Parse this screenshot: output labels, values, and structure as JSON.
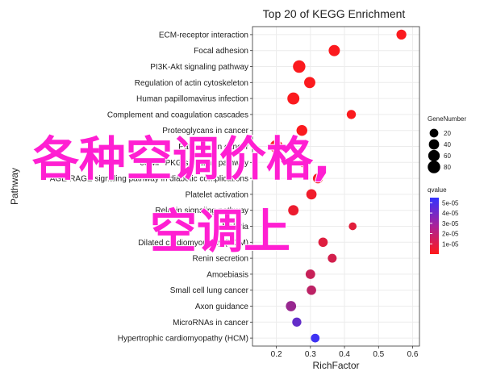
{
  "chart_data": {
    "type": "scatter",
    "title": "Top 20 of KEGG Enrichment",
    "xlabel": "RichFactor",
    "ylabel": "Pathway",
    "xlim": [
      0.13,
      0.62
    ],
    "xticks": [
      "0.2",
      "0.3",
      "0.4",
      "0.5",
      "0.6"
    ],
    "grid": true,
    "legend_position": "right",
    "size_legend": {
      "title": "GeneNumber",
      "values": [
        20,
        40,
        60,
        80
      ]
    },
    "color_legend": {
      "title": "qvalue",
      "ticks": [
        "5e-05",
        "4e-05",
        "3e-05",
        "2e-05",
        "1e-05"
      ],
      "min_color": "#ff1a1a",
      "max_color": "#3333ff",
      "domain": [
        0,
        5.5e-05
      ]
    },
    "categories": [
      "ECM-receptor interaction",
      "Focal adhesion",
      "PI3K-Akt signaling pathway",
      "Regulation of actin cytoskeleton",
      "Human papillomavirus infection",
      "Complement and coagulation cascades",
      "Proteoglycans in cancer",
      "Pathways in cancer",
      "cGMP-PKG signaling pathway",
      "AGE-RAGE signaling pathway in diabetic complications",
      "Platelet activation",
      "Relaxin signaling pathway",
      "Malaria",
      "Dilated cardiomyopathy (DCM)",
      "Renin secretion",
      "Amoebiasis",
      "Small cell lung cancer",
      "Axon guidance",
      "MicroRNAs in cancer",
      "Hypertrophic cardiomyopathy (HCM)"
    ],
    "points": [
      {
        "pathway": "ECM-receptor interaction",
        "x": 0.567,
        "gene": 35,
        "q": 1e-06
      },
      {
        "pathway": "Focal adhesion",
        "x": 0.37,
        "gene": 55,
        "q": 1e-06
      },
      {
        "pathway": "PI3K-Akt signaling pathway",
        "x": 0.267,
        "gene": 78,
        "q": 1e-06
      },
      {
        "pathway": "Regulation of actin cytoskeleton",
        "x": 0.298,
        "gene": 55,
        "q": 1e-06
      },
      {
        "pathway": "Human papillomavirus infection",
        "x": 0.25,
        "gene": 70,
        "q": 1e-06
      },
      {
        "pathway": "Complement and coagulation cascades",
        "x": 0.42,
        "gene": 25,
        "q": 1e-06
      },
      {
        "pathway": "Proteoglycans in cancer",
        "x": 0.275,
        "gene": 48,
        "q": 1e-06
      },
      {
        "pathway": "Pathways in cancer",
        "x": 0.2,
        "gene": 88,
        "q": 1e-06
      },
      {
        "pathway": "cGMP-PKG signaling pathway",
        "x": 0.283,
        "gene": 45,
        "q": 3e-06
      },
      {
        "pathway": "AGE-RAGE signaling pathway in diabetic complications",
        "x": 0.322,
        "gene": 35,
        "q": 3e-06
      },
      {
        "pathway": "Platelet activation",
        "x": 0.303,
        "gene": 40,
        "q": 4e-06
      },
      {
        "pathway": "Relaxin signaling pathway",
        "x": 0.25,
        "gene": 42,
        "q": 5e-06
      },
      {
        "pathway": "Malaria",
        "x": 0.424,
        "gene": 12,
        "q": 8e-06
      },
      {
        "pathway": "Dilated cardiomyopathy (DCM)",
        "x": 0.337,
        "gene": 28,
        "q": 9e-06
      },
      {
        "pathway": "Renin secretion",
        "x": 0.364,
        "gene": 22,
        "q": 1.2e-05
      },
      {
        "pathway": "Amoebiasis",
        "x": 0.3,
        "gene": 30,
        "q": 1.5e-05
      },
      {
        "pathway": "Small cell lung cancer",
        "x": 0.303,
        "gene": 28,
        "q": 1.8e-05
      },
      {
        "pathway": "Axon guidance",
        "x": 0.243,
        "gene": 40,
        "q": 2.8e-05
      },
      {
        "pathway": "MicroRNAs in cancer",
        "x": 0.26,
        "gene": 25,
        "q": 4.2e-05
      },
      {
        "pathway": "Hypertrophic cardiomyopathy (HCM)",
        "x": 0.314,
        "gene": 20,
        "q": 5.2e-05
      }
    ]
  },
  "overlay": {
    "line1": "各种空调价格,",
    "line2": "空调上"
  }
}
